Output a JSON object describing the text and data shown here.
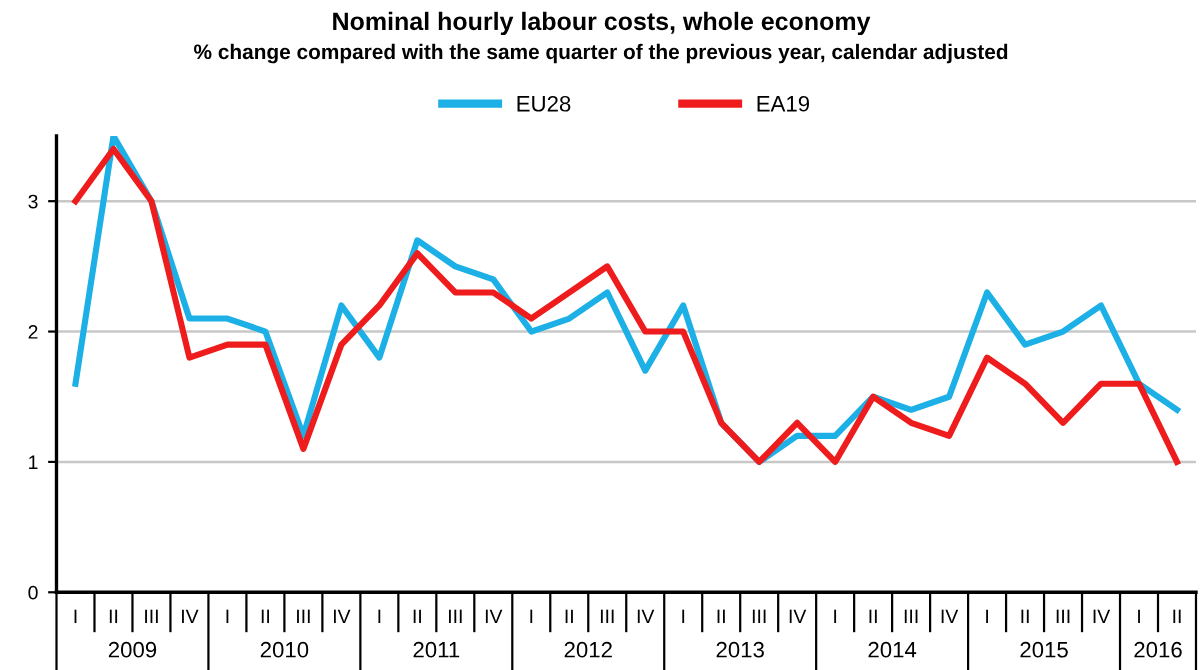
{
  "chart_data": {
    "type": "line",
    "title": "Nominal hourly labour costs, whole economy",
    "subtitle": "% change compared with the same quarter of the previous year, calendar adjusted",
    "categories": [
      "I",
      "II",
      "III",
      "IV",
      "I",
      "II",
      "III",
      "IV",
      "I",
      "II",
      "III",
      "IV",
      "I",
      "II",
      "III",
      "IV",
      "I",
      "II",
      "III",
      "IV",
      "I",
      "II",
      "III",
      "IV",
      "I",
      "II",
      "III",
      "IV",
      "I",
      "II"
    ],
    "annotations": [
      "2009",
      "2010",
      "2011",
      "2012",
      "2013",
      "2014",
      "2015",
      "2016"
    ],
    "series": [
      {
        "name": "EU28",
        "color": "#1cb0e6",
        "values": [
          1.6,
          3.5,
          3.0,
          2.1,
          2.1,
          2.0,
          1.2,
          2.2,
          1.8,
          2.7,
          2.5,
          2.4,
          2.0,
          2.1,
          2.3,
          1.7,
          2.2,
          1.3,
          1.0,
          1.2,
          1.2,
          1.5,
          1.4,
          1.5,
          2.3,
          1.9,
          2.0,
          2.2,
          1.6,
          1.4
        ]
      },
      {
        "name": "EA19",
        "color": "#ee1c1c",
        "values": [
          3.0,
          3.4,
          3.0,
          1.8,
          1.9,
          1.9,
          1.1,
          1.9,
          2.2,
          2.6,
          2.3,
          2.3,
          2.1,
          2.3,
          2.5,
          2.0,
          2.0,
          1.3,
          1.0,
          1.3,
          1.0,
          1.5,
          1.3,
          1.2,
          1.8,
          1.6,
          1.3,
          1.6,
          1.6,
          1.0
        ]
      }
    ],
    "ylim": [
      0,
      3.5
    ],
    "yticks": [
      0,
      1,
      2,
      3
    ],
    "grid": "y",
    "legend": "top",
    "marker": "none",
    "line_style": "solid"
  }
}
